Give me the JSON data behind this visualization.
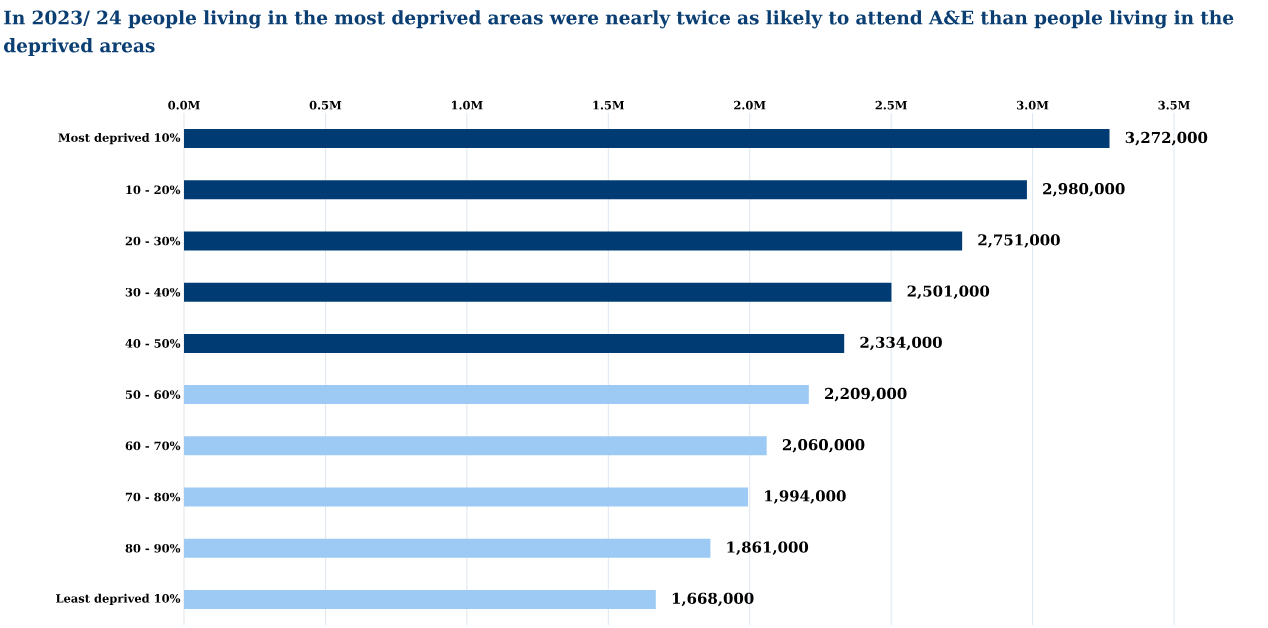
{
  "chart_data": {
    "type": "bar",
    "orientation": "horizontal",
    "title": "In 2023/ 24 people living in the most deprived areas were nearly twice as likely to attend A&E than people living in the deprived areas",
    "categories": [
      "Most deprived 10%",
      "10 - 20%",
      "20 - 30%",
      "30 - 40%",
      "40 - 50%",
      "50 - 60%",
      "60 - 70%",
      "70 - 80%",
      "80 - 90%",
      "Least deprived 10%"
    ],
    "values": [
      3272000,
      2980000,
      2751000,
      2501000,
      2334000,
      2209000,
      2060000,
      1994000,
      1861000,
      1668000
    ],
    "value_labels": [
      "3,272,000",
      "2,980,000",
      "2,751,000",
      "2,501,000",
      "2,334,000",
      "2,209,000",
      "2,060,000",
      "1,994,000",
      "1,861,000",
      "1,668,000"
    ],
    "colors": [
      "#003b73",
      "#003b73",
      "#003b73",
      "#003b73",
      "#003b73",
      "#9ccaf5",
      "#9ccaf5",
      "#9ccaf5",
      "#9ccaf5",
      "#9ccaf5"
    ],
    "xlim": [
      0,
      3500000
    ],
    "xticks": [
      {
        "value": 0,
        "label": "0.0M"
      },
      {
        "value": 500000,
        "label": "0.5M"
      },
      {
        "value": 1000000,
        "label": "1.0M"
      },
      {
        "value": 1500000,
        "label": "1.5M"
      },
      {
        "value": 2000000,
        "label": "2.0M"
      },
      {
        "value": 2500000,
        "label": "2.5M"
      },
      {
        "value": 3000000,
        "label": "3.0M"
      },
      {
        "value": 3500000,
        "label": "3.5M"
      }
    ],
    "grid": "x"
  }
}
